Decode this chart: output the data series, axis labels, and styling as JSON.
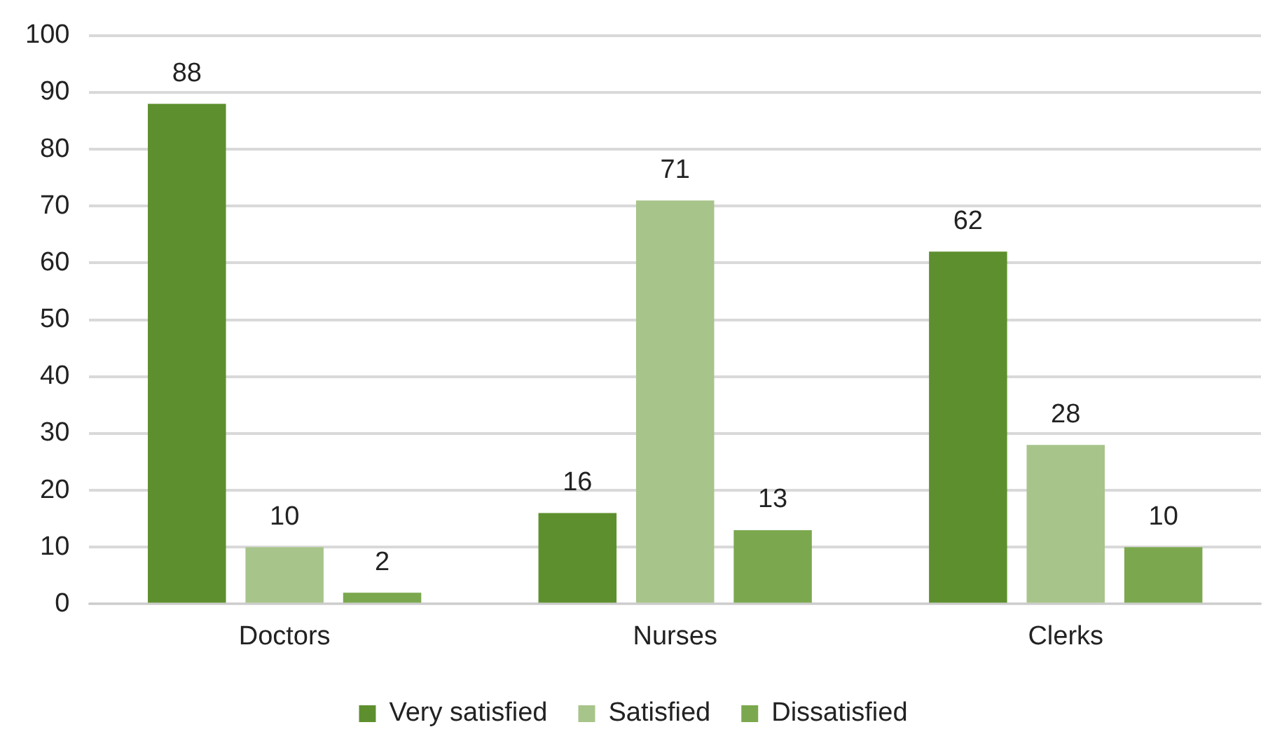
{
  "chart_data": {
    "type": "bar",
    "categories": [
      "Doctors",
      "Nurses",
      "Clerks"
    ],
    "series": [
      {
        "name": "Very satisfied",
        "color": "#5e8f2e",
        "values": [
          88,
          16,
          62
        ]
      },
      {
        "name": "Satisfied",
        "color": "#a7c48a",
        "values": [
          10,
          71,
          28
        ]
      },
      {
        "name": "Dissatisfied",
        "color": "#7ba84e",
        "values": [
          2,
          13,
          10
        ]
      }
    ],
    "ylim": [
      0,
      100
    ],
    "yticks": [
      0,
      10,
      20,
      30,
      40,
      50,
      60,
      70,
      80,
      90,
      100
    ],
    "grid": "y",
    "legend": "bottom",
    "data_labels": true
  }
}
